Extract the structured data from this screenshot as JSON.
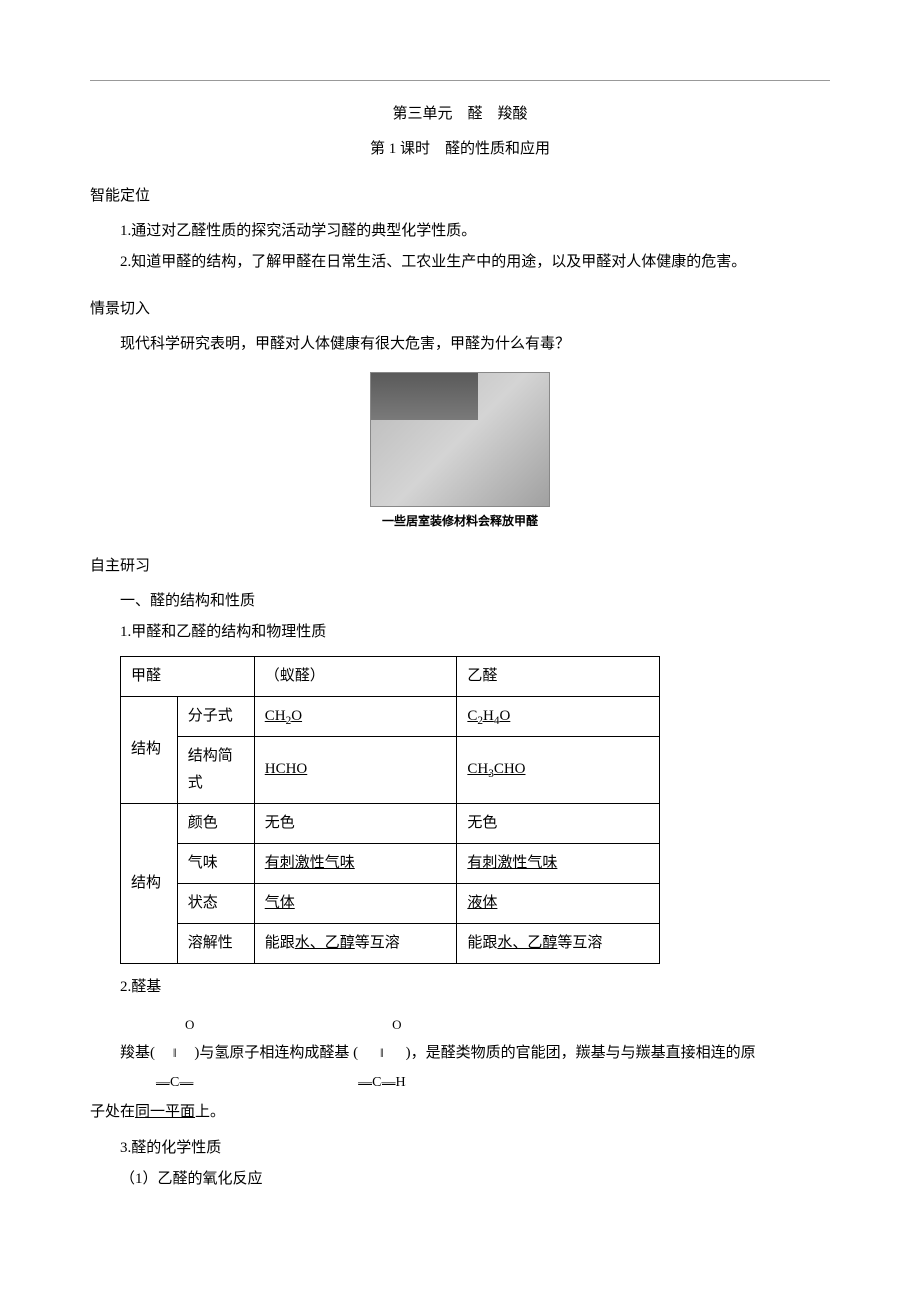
{
  "title_line1": "第三单元　醛　羧酸",
  "title_line2": "第 1 课时　醛的性质和应用",
  "section_positioning": "智能定位",
  "positioning_item1": "1.通过对乙醛性质的探究活动学习醛的典型化学性质。",
  "positioning_item2": "2.知道甲醛的结构，了解甲醛在日常生活、工农业生产中的用途，以及甲醛对人体健康的危害。",
  "section_scenario": "情景切入",
  "scenario_text": "现代科学研究表明，甲醛对人体健康有很大危害，甲醛为什么有毒？",
  "image_caption": "一些居室装修材料会释放甲醛",
  "section_selfstudy": "自主研习",
  "heading_1": "一、醛的结构和性质",
  "heading_1_1": "1.甲醛和乙醛的结构和物理性质",
  "table": {
    "r1c1": "甲醛",
    "r1c3": "（蚁醛）",
    "r1c4": "乙醛",
    "r2c1": "结构",
    "r2c2": "分子式",
    "r2c3": "CH₂O",
    "r2c4": "C₂H₄O",
    "r3c2": "结构简式",
    "r3c3": "HCHO",
    "r3c4": "CH₃CHO",
    "r4c1": "结构",
    "r4c2": "颜色",
    "r4c3": "无色",
    "r4c4": "无色",
    "r5c2": "气味",
    "r5c3": "有刺激性气味",
    "r5c4": "有刺激性气味",
    "r6c2": "状态",
    "r6c3": "气体",
    "r6c4": "液体",
    "r7c2": "溶解性",
    "r7c3_pre": "能跟",
    "r7c3_u": "水、乙醇",
    "r7c3_post": "等互溶",
    "r7c4_pre": "能跟",
    "r7c4_u": "水、乙醇",
    "r7c4_post": "等互溶"
  },
  "heading_1_2": "2.醛基",
  "formula_para_1a": "羧基(",
  "formula_carbonyl": {
    "top": "O",
    "mid": "‖",
    "bot": "—C—"
  },
  "formula_para_1b": ")与氢原子相连构成醛基 (",
  "formula_aldehyde": {
    "top": "O",
    "mid": "‖",
    "bot": "—C—H"
  },
  "formula_para_1c": ")，是醛类物质的官能团，羰基与与羰基直接相连的原",
  "formula_para_2a": "子处在",
  "formula_para_2_u": "同一平面",
  "formula_para_2b": "上。",
  "heading_1_3": "3.醛的化学性质",
  "heading_1_3_1": "（1）乙醛的氧化反应",
  "colors": {
    "text": "#000000",
    "background": "#ffffff",
    "rule": "#999999",
    "table_border": "#000000"
  }
}
